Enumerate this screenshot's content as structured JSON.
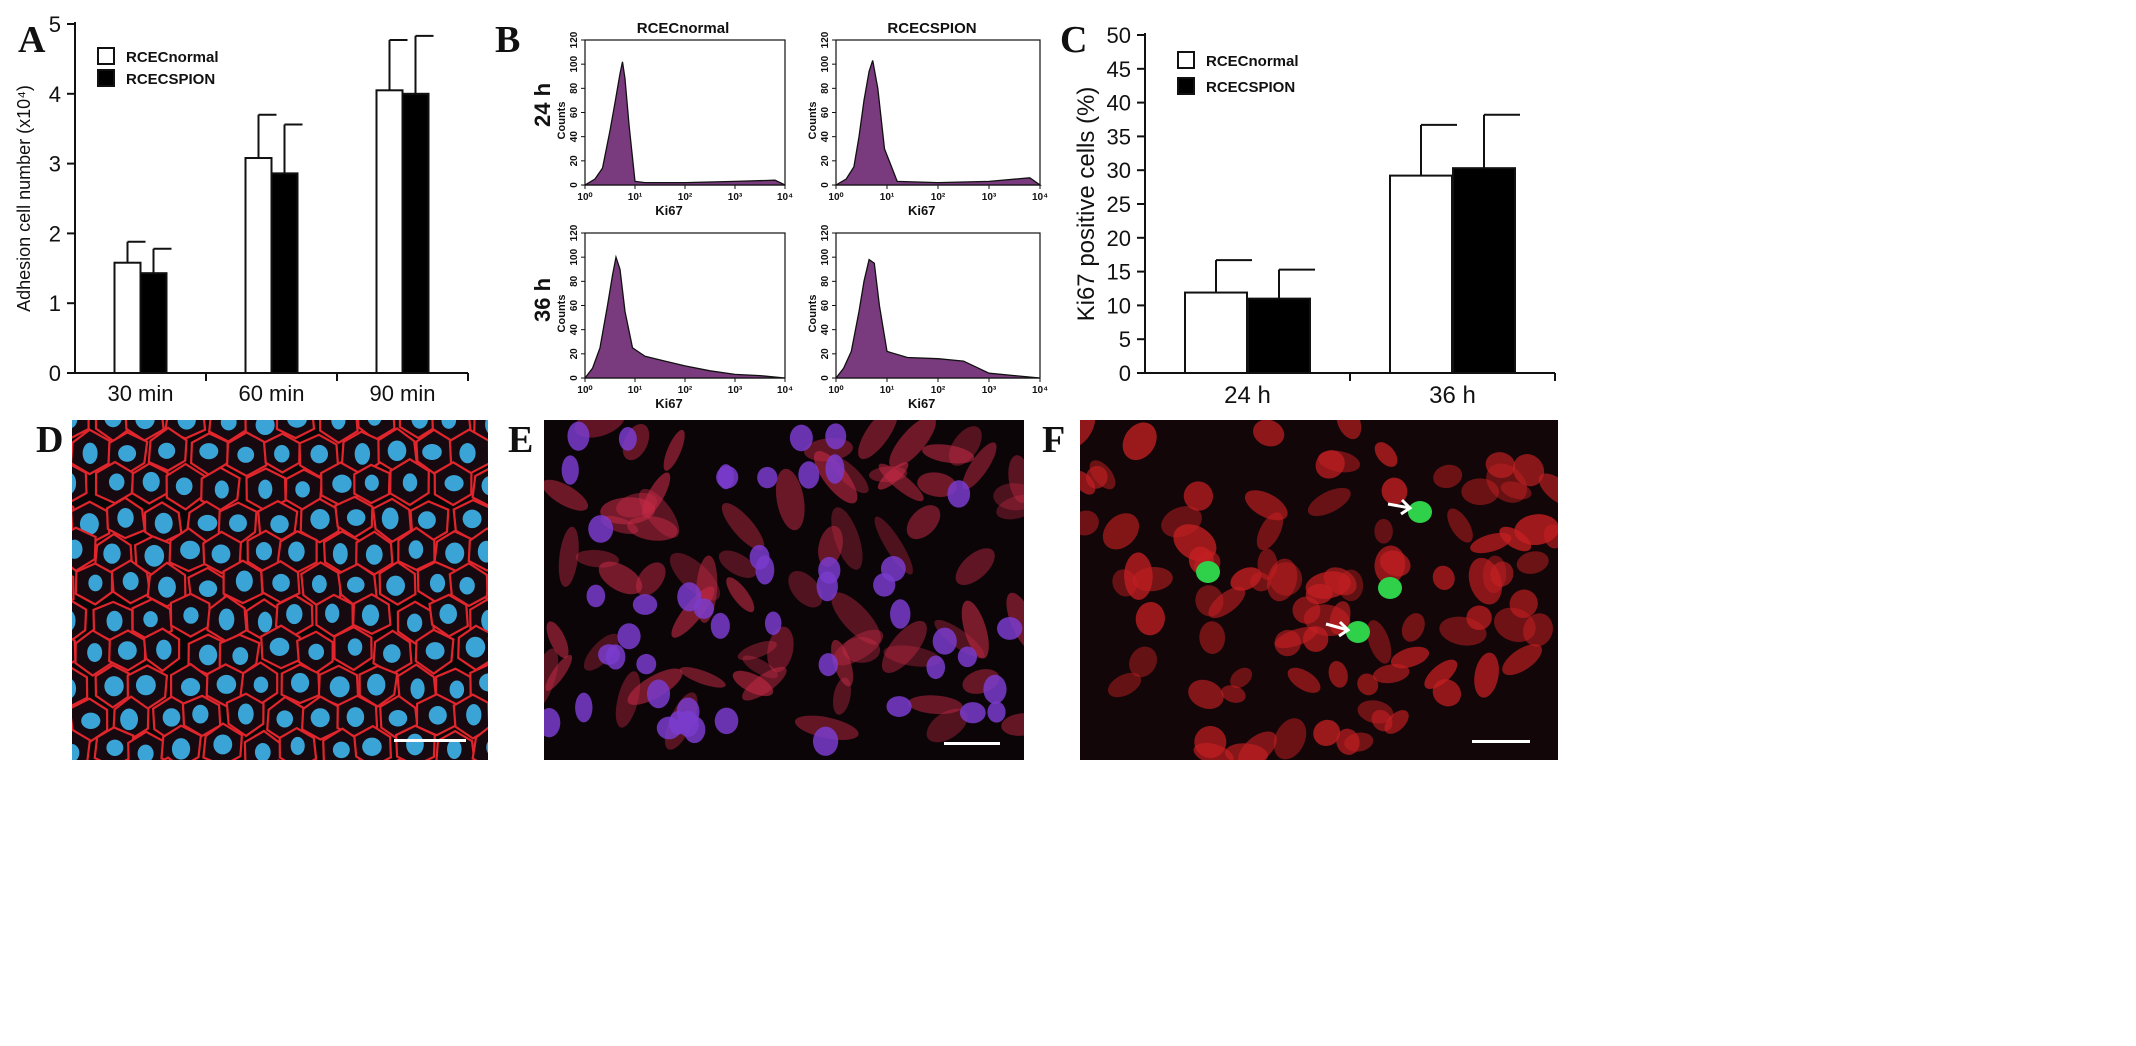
{
  "panels": {
    "a": "A",
    "b": "B",
    "c": "C",
    "d": "D",
    "e": "E",
    "f": "F"
  },
  "chart_data": [
    {
      "id": "A",
      "type": "bar",
      "ylabel": "Adhesion cell number (x10⁴)",
      "ylim": [
        0,
        5
      ],
      "yticks": [
        "0",
        "1",
        "2",
        "3",
        "4",
        "5"
      ],
      "categories": [
        "30 min",
        "60 min",
        "90 min"
      ],
      "series": [
        {
          "name": "RCECnormal",
          "fill": "#ffffff",
          "values": [
            1.58,
            3.08,
            4.05
          ],
          "errors": [
            0.3,
            0.62,
            0.72
          ]
        },
        {
          "name": "RCECSPION",
          "fill": "#000000",
          "values": [
            1.43,
            2.86,
            4.0
          ],
          "errors": [
            0.35,
            0.7,
            0.83
          ]
        }
      ],
      "legend": "top-left"
    },
    {
      "id": "B",
      "type": "area",
      "column_titles": [
        "RCECnormal",
        "RCECSPION"
      ],
      "row_titles": [
        "24 h",
        "36 h"
      ],
      "xlabel": "Ki67",
      "ylabel": "Counts",
      "xscale": "log",
      "xticks": [
        "10⁰",
        "10¹",
        "10²",
        "10³",
        "10⁴"
      ],
      "yticks": [
        "0",
        "20",
        "40",
        "60",
        "80",
        "100",
        "120"
      ],
      "ylim": [
        0,
        120
      ],
      "fill": "#7a3b7e",
      "histograms": [
        {
          "row": "24 h",
          "col": "RCECnormal",
          "x": [
            0,
            0.2,
            0.35,
            0.5,
            0.6,
            0.7,
            0.75,
            0.8,
            0.88,
            1,
            1.2,
            2,
            3,
            3.8,
            4
          ],
          "y": [
            0,
            5,
            14,
            45,
            68,
            92,
            102,
            88,
            50,
            3,
            2,
            2,
            3,
            4,
            0
          ]
        },
        {
          "row": "24 h",
          "col": "RCECSPION",
          "x": [
            0,
            0.2,
            0.35,
            0.45,
            0.55,
            0.65,
            0.72,
            0.82,
            0.95,
            1.2,
            2,
            3,
            3.8,
            4
          ],
          "y": [
            0,
            5,
            15,
            40,
            70,
            94,
            103,
            80,
            30,
            3,
            2,
            3,
            6,
            0
          ]
        },
        {
          "row": "36 h",
          "col": "RCECnormal",
          "x": [
            0,
            0.15,
            0.3,
            0.45,
            0.55,
            0.62,
            0.7,
            0.8,
            0.95,
            1.2,
            1.6,
            2,
            2.5,
            3,
            3.5,
            4
          ],
          "y": [
            0,
            8,
            25,
            60,
            85,
            100,
            90,
            55,
            25,
            18,
            14,
            10,
            6,
            3,
            2,
            0
          ]
        },
        {
          "row": "36 h",
          "col": "RCECSPION",
          "x": [
            0,
            0.15,
            0.3,
            0.45,
            0.55,
            0.65,
            0.75,
            0.85,
            1,
            1.4,
            2,
            2.5,
            3,
            3.5,
            4
          ],
          "y": [
            0,
            8,
            22,
            55,
            80,
            98,
            95,
            60,
            22,
            17,
            16,
            14,
            4,
            2,
            0
          ]
        }
      ]
    },
    {
      "id": "C",
      "type": "bar",
      "ylabel": "Ki67 positive cells (%)",
      "ylim": [
        0,
        50
      ],
      "yticks": [
        "0",
        "5",
        "10",
        "15",
        "20",
        "25",
        "30",
        "35",
        "40",
        "45",
        "50"
      ],
      "categories": [
        "24 h",
        "36 h"
      ],
      "series": [
        {
          "name": "RCECnormal",
          "fill": "#ffffff",
          "values": [
            11.9,
            29.2
          ],
          "errors": [
            4.8,
            7.5
          ]
        },
        {
          "name": "RCECSPION",
          "fill": "#000000",
          "values": [
            11.0,
            30.3
          ],
          "errors": [
            4.3,
            7.9
          ]
        }
      ],
      "legend": "top-left"
    }
  ],
  "micrographs": [
    {
      "id": "D",
      "background": "#0a0608",
      "membrane": "#e0262c",
      "nucleus": "#3fb2e8",
      "label": "hexagonal endothelial cell monolayer"
    },
    {
      "id": "E",
      "background": "#0c0508",
      "cytoplasm": "#c42a45",
      "nucleus": "#7a3ccc"
    },
    {
      "id": "F",
      "background": "#120608",
      "cytoplasm": "#c41f22",
      "highlight": "#2fd14a",
      "arrow": "#ffffff"
    }
  ]
}
